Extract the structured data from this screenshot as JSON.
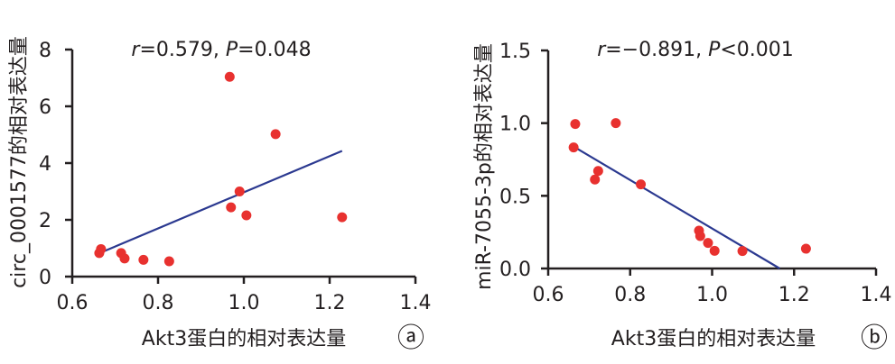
{
  "chart_data": [
    {
      "type": "scatter",
      "panel_label": "ⓐ",
      "annotation": {
        "r_label": "r",
        "r_text": "=0.579, ",
        "p_label": "P",
        "p_text": "=0.048"
      },
      "xlabel": "Akt3蛋白的相对表达量",
      "ylabel": "circ_0001577的相对表达量",
      "xlim": [
        0.6,
        1.4
      ],
      "ylim": [
        0,
        8
      ],
      "xticks": [
        "0.6",
        "0.8",
        "1.0",
        "1.2",
        "1.4"
      ],
      "xtick_values": [
        0.6,
        0.8,
        1.0,
        1.2,
        1.4
      ],
      "yticks": [
        "0",
        "2",
        "4",
        "6",
        "8"
      ],
      "ytick_values": [
        0,
        2,
        4,
        6,
        8
      ],
      "points": [
        [
          0.663,
          0.83
        ],
        [
          0.667,
          0.97
        ],
        [
          0.714,
          0.83
        ],
        [
          0.722,
          0.64
        ],
        [
          0.766,
          0.59
        ],
        [
          0.826,
          0.54
        ],
        [
          0.967,
          7.04
        ],
        [
          0.97,
          2.44
        ],
        [
          0.99,
          3.0
        ],
        [
          1.006,
          2.16
        ],
        [
          1.074,
          5.02
        ],
        [
          1.229,
          2.09
        ]
      ],
      "fit_line": [
        [
          0.667,
          0.85
        ],
        [
          1.229,
          4.43
        ]
      ],
      "point_color": "#e8312f",
      "line_color": "#2b3990"
    },
    {
      "type": "scatter",
      "panel_label": "ⓑ",
      "annotation": {
        "r_label": "r",
        "r_text": "=−0.891, ",
        "p_label": "P",
        "p_text": "<0.001"
      },
      "xlabel": "Akt3蛋白的相对表达量",
      "ylabel": "miR-7055-3p的相对表达量",
      "xlim": [
        0.6,
        1.4
      ],
      "ylim": [
        0,
        1.5
      ],
      "xticks": [
        "0.6",
        "0.8",
        "1.0",
        "1.2",
        "1.4"
      ],
      "xtick_values": [
        0.6,
        0.8,
        1.0,
        1.2,
        1.4
      ],
      "yticks": [
        "0.0",
        "0.5",
        "1.0",
        "1.5"
      ],
      "ytick_values": [
        0,
        0.5,
        1.0,
        1.5
      ],
      "points": [
        [
          0.666,
          0.994
        ],
        [
          0.765,
          1.0
        ],
        [
          0.662,
          0.833
        ],
        [
          0.722,
          0.671
        ],
        [
          0.714,
          0.612
        ],
        [
          0.826,
          0.579
        ],
        [
          0.968,
          0.26
        ],
        [
          0.971,
          0.223
        ],
        [
          0.99,
          0.176
        ],
        [
          1.006,
          0.122
        ],
        [
          1.074,
          0.12
        ],
        [
          1.229,
          0.136
        ]
      ],
      "fit_line": [
        [
          0.662,
          0.839
        ],
        [
          1.165,
          0
        ]
      ],
      "point_color": "#e8312f",
      "line_color": "#2b3990"
    }
  ]
}
